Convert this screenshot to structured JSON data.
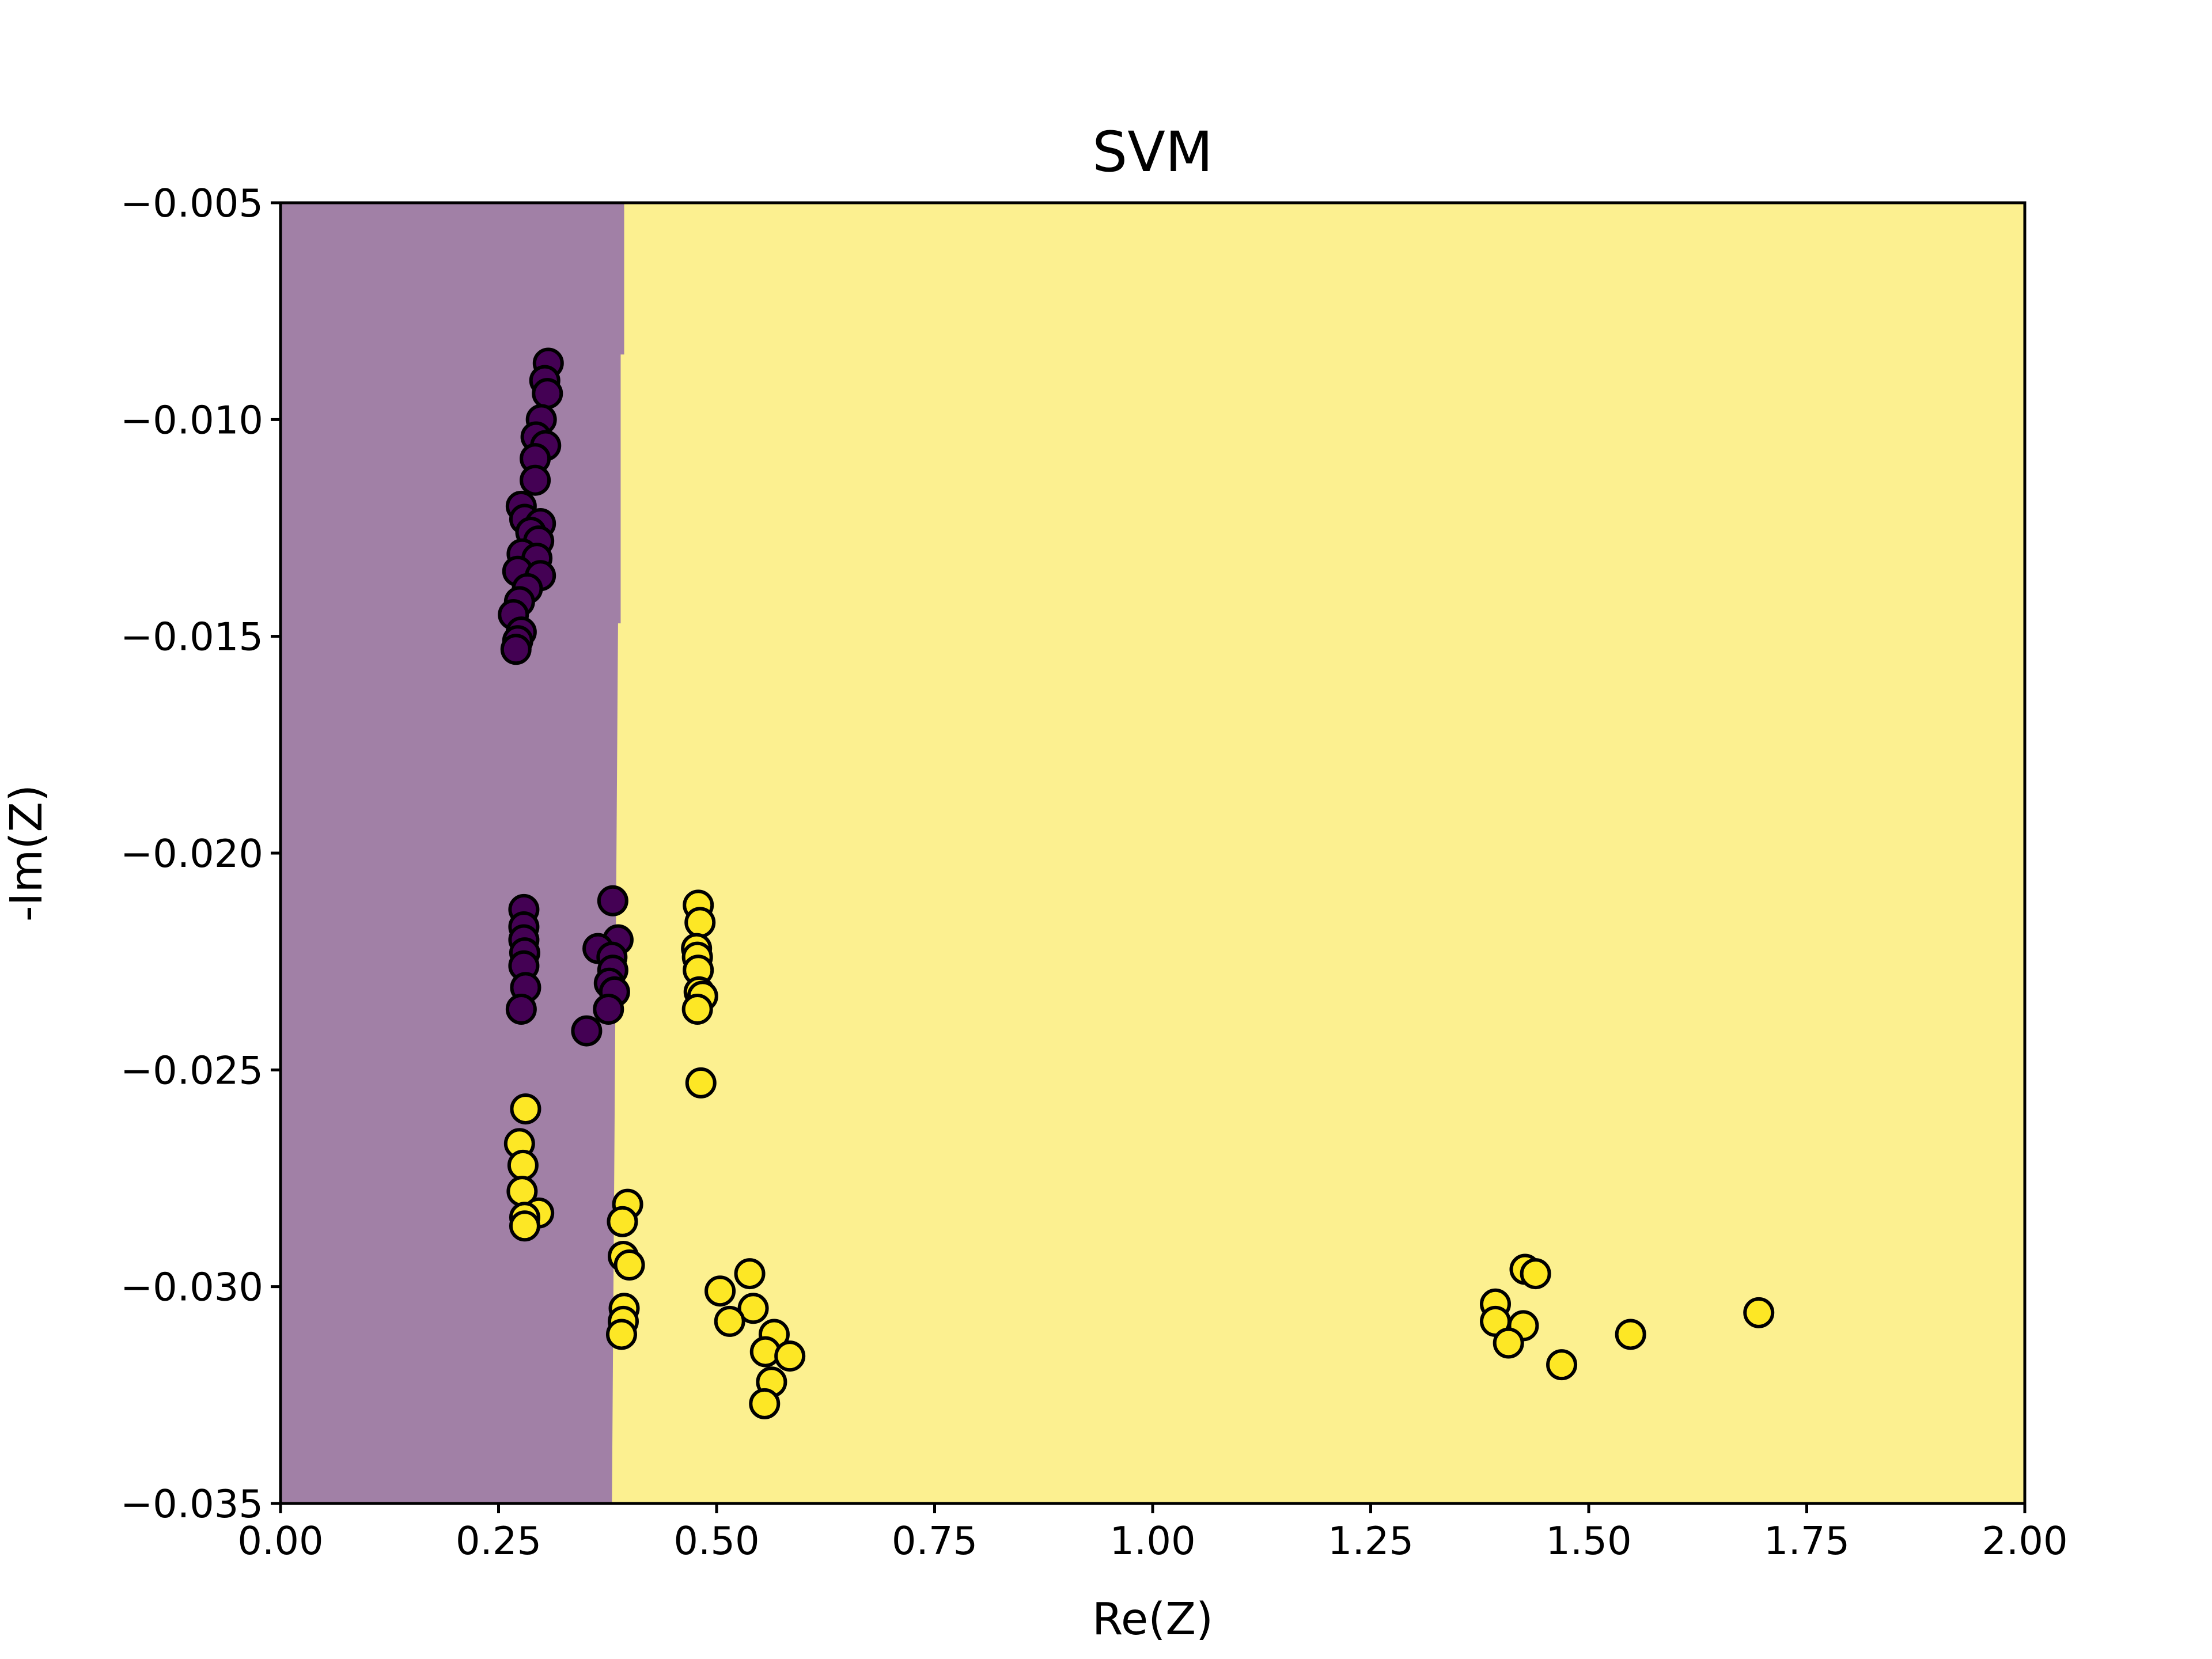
{
  "chart_data": {
    "type": "scatter",
    "title": "SVM",
    "xlabel": "Re(Z)",
    "ylabel": "-Im(Z)",
    "xlim": [
      0.0,
      2.0
    ],
    "ylim": [
      -0.035,
      -0.005
    ],
    "xticks": [
      "0.00",
      "0.25",
      "0.50",
      "0.75",
      "1.00",
      "1.25",
      "1.50",
      "1.75",
      "2.00"
    ],
    "yticks": [
      "−0.005",
      "−0.010",
      "−0.015",
      "−0.020",
      "−0.025",
      "−0.030",
      "−0.035"
    ],
    "grid": false,
    "legend": "none",
    "decision_regions": {
      "class_0_color": "#a180a6",
      "class_1_color": "#fcf090",
      "boundary": [
        {
          "y": -0.005,
          "x": 0.394
        },
        {
          "y": -0.0085,
          "x": 0.394
        },
        {
          "y": -0.0085,
          "x": 0.39
        },
        {
          "y": -0.0147,
          "x": 0.39
        },
        {
          "y": -0.0147,
          "x": 0.387
        },
        {
          "y": -0.035,
          "x": 0.38
        }
      ]
    },
    "point_colors": {
      "class_0": "#440154",
      "class_1": "#fde725",
      "edge": "#000000"
    },
    "series": [
      {
        "points": [
          {
            "x": 0.307,
            "y": -0.0087
          },
          {
            "x": 0.303,
            "y": -0.0091
          },
          {
            "x": 0.306,
            "y": -0.0094
          },
          {
            "x": 0.299,
            "y": -0.01
          },
          {
            "x": 0.293,
            "y": -0.0104
          },
          {
            "x": 0.304,
            "y": -0.0106
          },
          {
            "x": 0.292,
            "y": -0.0109
          },
          {
            "x": 0.292,
            "y": -0.0114
          },
          {
            "x": 0.276,
            "y": -0.012
          },
          {
            "x": 0.28,
            "y": -0.0123
          },
          {
            "x": 0.298,
            "y": -0.0124
          },
          {
            "x": 0.287,
            "y": -0.0126
          },
          {
            "x": 0.296,
            "y": -0.0128
          },
          {
            "x": 0.277,
            "y": -0.0131
          },
          {
            "x": 0.294,
            "y": -0.0132
          },
          {
            "x": 0.272,
            "y": -0.0135
          },
          {
            "x": 0.298,
            "y": -0.0136
          },
          {
            "x": 0.283,
            "y": -0.0139
          },
          {
            "x": 0.274,
            "y": -0.0142
          },
          {
            "x": 0.267,
            "y": -0.0145
          },
          {
            "x": 0.276,
            "y": -0.0149
          },
          {
            "x": 0.272,
            "y": -0.0151
          },
          {
            "x": 0.27,
            "y": -0.0153
          },
          {
            "x": 0.279,
            "y": -0.0213
          },
          {
            "x": 0.279,
            "y": -0.0217
          },
          {
            "x": 0.279,
            "y": -0.022
          },
          {
            "x": 0.28,
            "y": -0.0223
          },
          {
            "x": 0.279,
            "y": -0.0226
          },
          {
            "x": 0.281,
            "y": -0.0231
          },
          {
            "x": 0.276,
            "y": -0.0236
          },
          {
            "x": 0.381,
            "y": -0.0211
          },
          {
            "x": 0.387,
            "y": -0.022
          },
          {
            "x": 0.364,
            "y": -0.0222
          },
          {
            "x": 0.38,
            "y": -0.0224
          },
          {
            "x": 0.381,
            "y": -0.0227
          },
          {
            "x": 0.377,
            "y": -0.023
          },
          {
            "x": 0.383,
            "y": -0.0232
          },
          {
            "x": 0.376,
            "y": -0.0236
          },
          {
            "x": 0.351,
            "y": -0.0241
          }
        ]
      },
      {
        "points": [
          {
            "x": 0.479,
            "y": -0.0212
          },
          {
            "x": 0.481,
            "y": -0.0216
          },
          {
            "x": 0.477,
            "y": -0.0222
          },
          {
            "x": 0.478,
            "y": -0.0224
          },
          {
            "x": 0.479,
            "y": -0.0227
          },
          {
            "x": 0.48,
            "y": -0.0232
          },
          {
            "x": 0.484,
            "y": -0.0233
          },
          {
            "x": 0.478,
            "y": -0.0236
          },
          {
            "x": 0.482,
            "y": -0.0253
          },
          {
            "x": 0.281,
            "y": -0.0259
          },
          {
            "x": 0.274,
            "y": -0.0267
          },
          {
            "x": 0.278,
            "y": -0.0272
          },
          {
            "x": 0.277,
            "y": -0.0278
          },
          {
            "x": 0.296,
            "y": -0.0283
          },
          {
            "x": 0.28,
            "y": -0.0284
          },
          {
            "x": 0.28,
            "y": -0.0286
          },
          {
            "x": 0.398,
            "y": -0.0281
          },
          {
            "x": 0.392,
            "y": -0.0285
          },
          {
            "x": 0.393,
            "y": -0.0293
          },
          {
            "x": 0.4,
            "y": -0.0295
          },
          {
            "x": 0.394,
            "y": -0.0305
          },
          {
            "x": 0.393,
            "y": -0.0308
          },
          {
            "x": 0.391,
            "y": -0.0311
          },
          {
            "x": 0.538,
            "y": -0.0297
          },
          {
            "x": 0.504,
            "y": -0.0301
          },
          {
            "x": 0.542,
            "y": -0.0305
          },
          {
            "x": 0.515,
            "y": -0.0308
          },
          {
            "x": 0.566,
            "y": -0.0311
          },
          {
            "x": 0.556,
            "y": -0.0315
          },
          {
            "x": 0.584,
            "y": -0.0316
          },
          {
            "x": 0.563,
            "y": -0.0322
          },
          {
            "x": 0.555,
            "y": -0.0327
          },
          {
            "x": 1.427,
            "y": -0.0296
          },
          {
            "x": 1.439,
            "y": -0.0297
          },
          {
            "x": 1.393,
            "y": -0.0304
          },
          {
            "x": 1.393,
            "y": -0.0308
          },
          {
            "x": 1.425,
            "y": -0.0309
          },
          {
            "x": 1.408,
            "y": -0.0313
          },
          {
            "x": 1.469,
            "y": -0.0318
          },
          {
            "x": 1.548,
            "y": -0.0311
          },
          {
            "x": 1.695,
            "y": -0.0306
          }
        ]
      }
    ]
  }
}
